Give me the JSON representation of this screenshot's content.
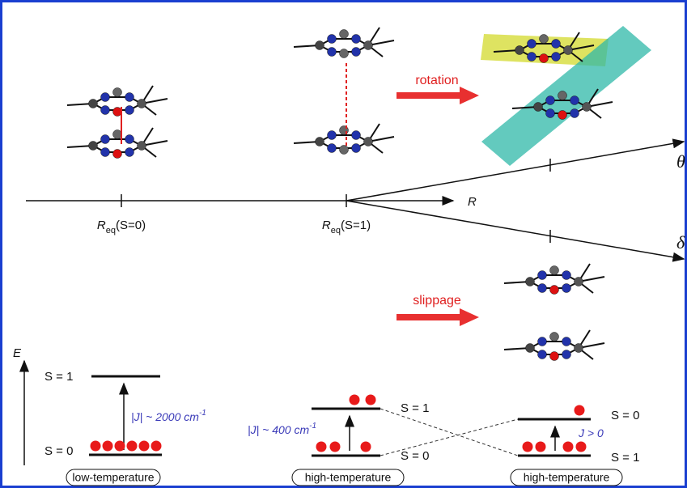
{
  "axes": {
    "r_label": "R",
    "theta_label": "θ",
    "delta_label": "δ",
    "req_s0": {
      "symbol": "R",
      "sub": "eq",
      "state": "(S=0)"
    },
    "req_s1": {
      "symbol": "R",
      "sub": "eq",
      "state": "(S=1)"
    }
  },
  "arrows": {
    "rotation": "rotation",
    "slippage": "slippage"
  },
  "energy_axis": "E",
  "panels": [
    {
      "upper": "S = 1",
      "lower": "S = 0",
      "coupling": {
        "text": "|J| ~ 2000 cm",
        "sup": "-1"
      },
      "caption": "low-temperature"
    },
    {
      "upper": "S = 1",
      "lower": "S = 0",
      "coupling": {
        "text": "|J| ~ 400 cm",
        "sup": "-1"
      },
      "caption": "high-temperature"
    },
    {
      "upper": "S = 0",
      "lower": "S = 1",
      "coupling": {
        "text": "J > 0"
      },
      "caption": "high-temperature"
    }
  ]
}
